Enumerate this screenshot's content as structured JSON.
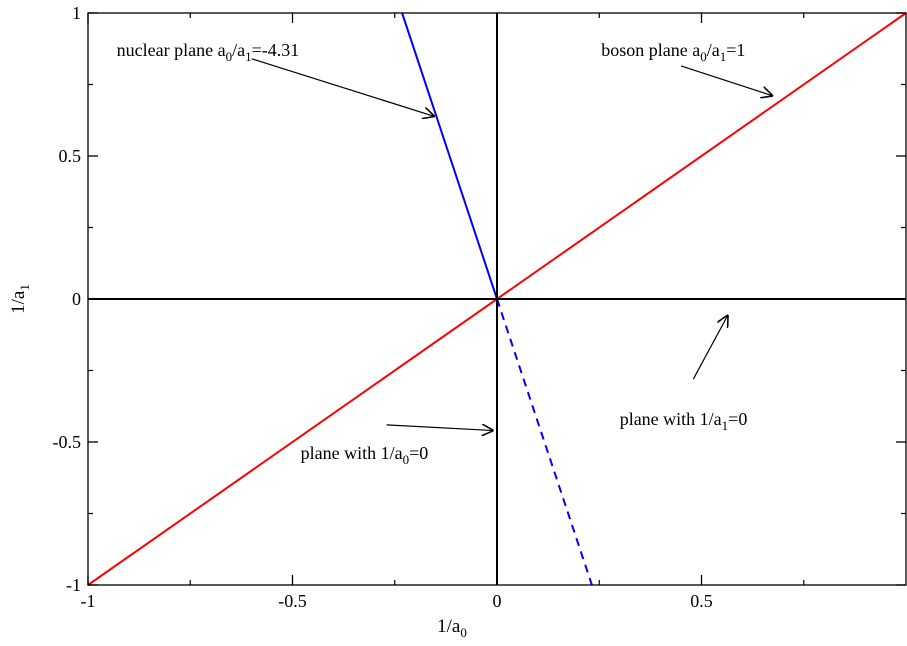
{
  "chart_data": {
    "type": "line",
    "xlabel": "1/a0",
    "ylabel": "1/a1",
    "xlabel_parts": {
      "main": "1/a",
      "sub": "0"
    },
    "ylabel_parts": {
      "main": "1/a",
      "sub": "1"
    },
    "xlim": [
      -1,
      1
    ],
    "ylim": [
      -1,
      1
    ],
    "x_ticks": [
      {
        "value": -1,
        "label": "-1"
      },
      {
        "value": -0.5,
        "label": "-0.5"
      },
      {
        "value": 0,
        "label": "0"
      },
      {
        "value": 0.5,
        "label": "0.5"
      }
    ],
    "y_ticks": [
      {
        "value": -1,
        "label": "-1"
      },
      {
        "value": -0.5,
        "label": "-0.5"
      },
      {
        "value": 0,
        "label": "0"
      },
      {
        "value": 0.5,
        "label": "0.5"
      },
      {
        "value": 1,
        "label": "1"
      }
    ],
    "grid": false,
    "series": [
      {
        "key": "boson",
        "color": "#ff0000",
        "style": "solid",
        "x": [
          -1,
          1
        ],
        "y": [
          -1,
          1
        ]
      },
      {
        "key": "nuclear",
        "color": "#0000ff",
        "style": "solid",
        "x": [
          -0.232,
          0
        ],
        "y": [
          1,
          0
        ]
      },
      {
        "key": "nuclear-dashed",
        "color": "#0000ff",
        "style": "dashed",
        "x": [
          0,
          0.232
        ],
        "y": [
          0,
          -1
        ]
      },
      {
        "key": "a1-inf",
        "color": "#000000",
        "style": "solid",
        "x": [
          -1,
          1
        ],
        "y": [
          0,
          0
        ]
      },
      {
        "key": "a0-inf",
        "color": "#000000",
        "style": "solid",
        "x": [
          0,
          0
        ],
        "y": [
          -1,
          1
        ]
      }
    ],
    "annotations": [
      {
        "key": "nuclear",
        "text": "nuclear plane a0/a1=-4.31",
        "parts": [
          {
            "t": "nuclear plane a"
          },
          {
            "t": "0",
            "sub": true
          },
          {
            "t": "/a"
          },
          {
            "t": "1",
            "sub": true
          },
          {
            "t": "=-4.31"
          }
        ],
        "label_at": [
          -0.93,
          0.85
        ],
        "arrow_from": [
          -0.6,
          0.84
        ],
        "arrow_to": [
          -0.152,
          0.638
        ]
      },
      {
        "key": "boson",
        "text": "boson plane a0/a1=1",
        "parts": [
          {
            "t": "boson plane a"
          },
          {
            "t": "0",
            "sub": true
          },
          {
            "t": "/a"
          },
          {
            "t": "1",
            "sub": true
          },
          {
            "t": "=1"
          }
        ],
        "label_at": [
          0.255,
          0.85
        ],
        "arrow_from": [
          0.45,
          0.815
        ],
        "arrow_to": [
          0.675,
          0.71
        ]
      },
      {
        "key": "a1-inf",
        "text": "plane with 1/a1=0",
        "parts": [
          {
            "t": "plane with 1/a"
          },
          {
            "t": "1",
            "sub": true
          },
          {
            "t": "=0"
          }
        ],
        "label_at": [
          0.3,
          -0.44
        ],
        "arrow_from": [
          0.48,
          -0.28
        ],
        "arrow_to": [
          0.565,
          -0.055
        ]
      },
      {
        "key": "a0-inf",
        "text": "plane with 1/a0=0",
        "parts": [
          {
            "t": "plane with 1/a"
          },
          {
            "t": "0",
            "sub": true
          },
          {
            "t": "=0"
          }
        ],
        "label_at": [
          -0.48,
          -0.56
        ],
        "arrow_from": [
          -0.27,
          -0.44
        ],
        "arrow_to": [
          -0.008,
          -0.46
        ]
      }
    ]
  }
}
